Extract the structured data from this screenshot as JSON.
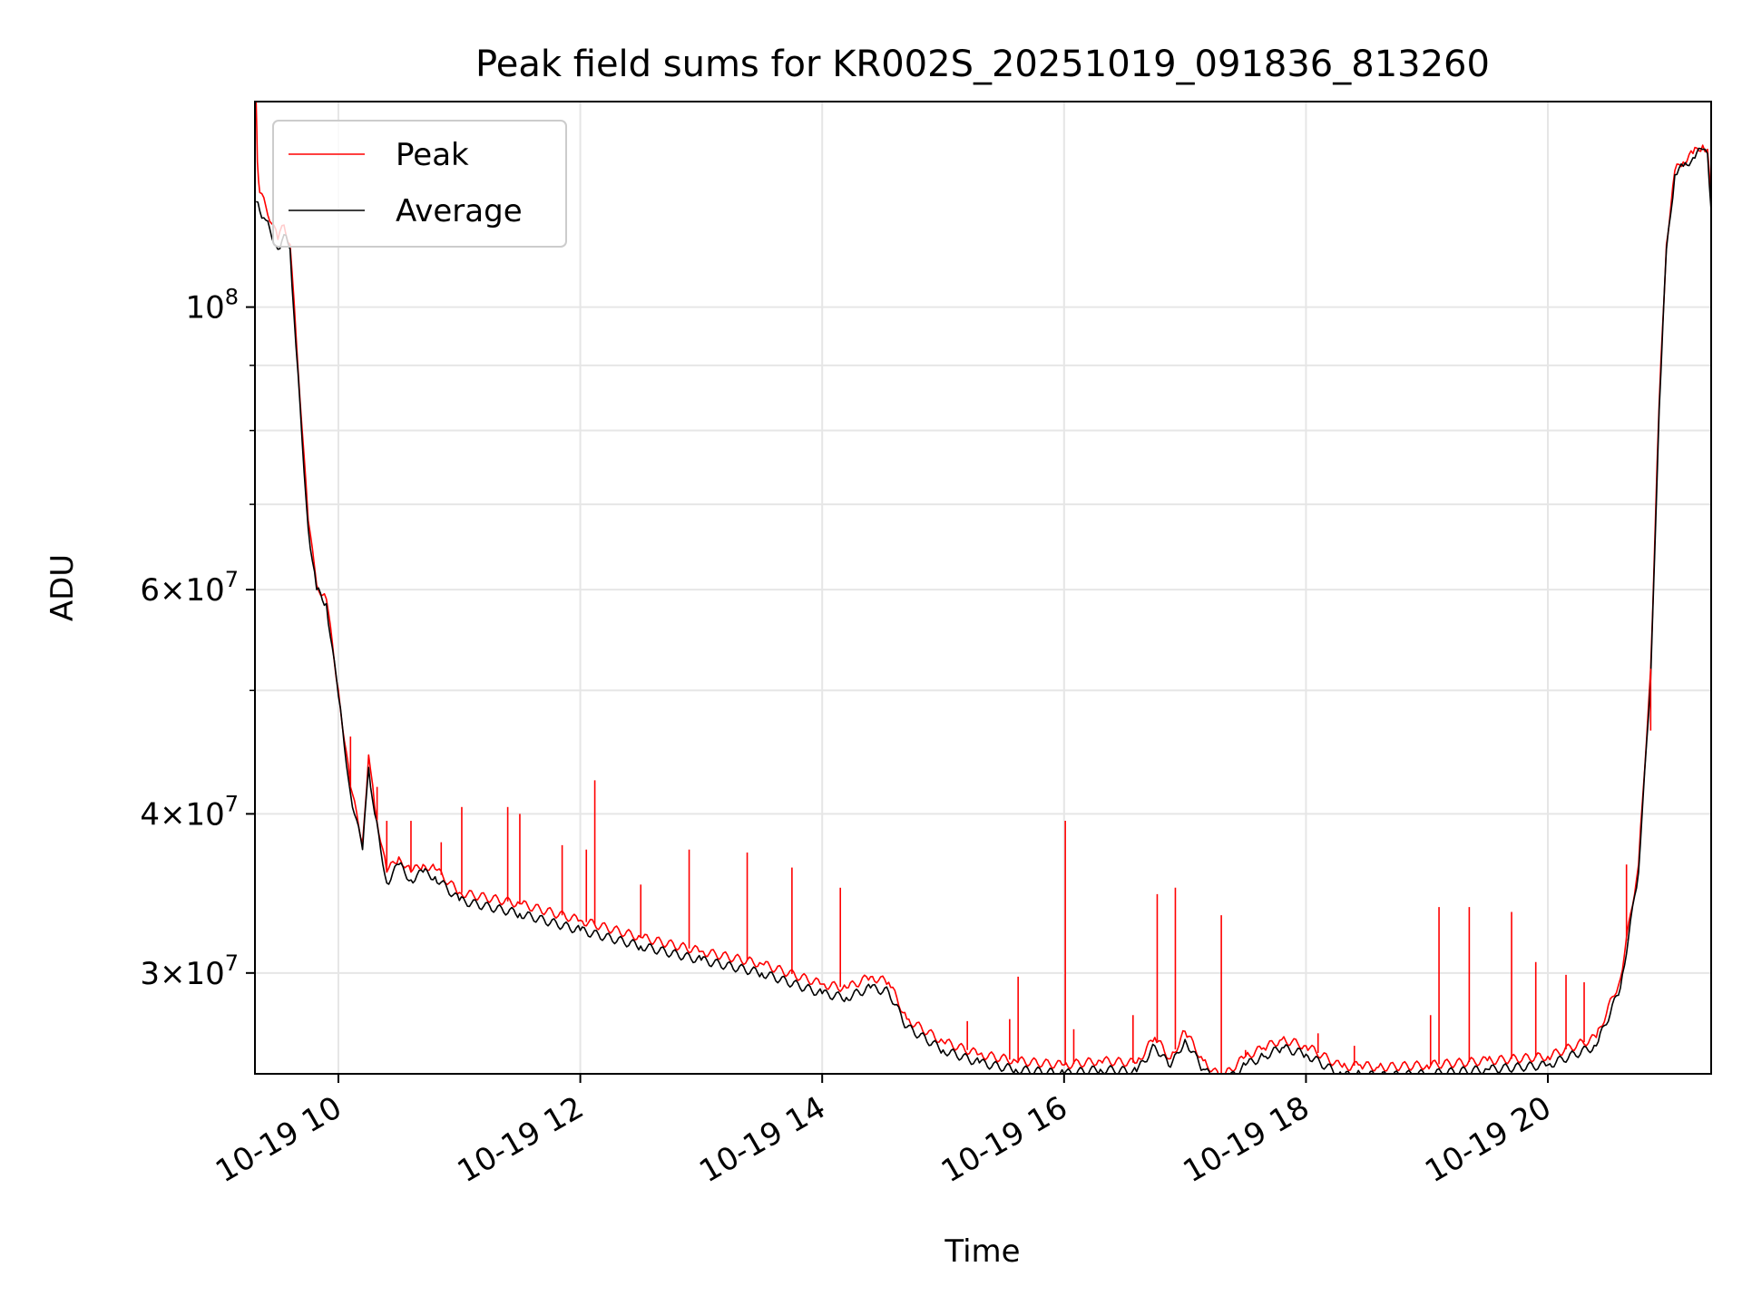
{
  "chart_data": {
    "type": "line",
    "title": "Peak field sums for KR002S_20251019_091836_813260",
    "xlabel": "Time",
    "ylabel": "ADU",
    "x_unit": "hours (2025-10-19, local clock)",
    "xlim": [
      9.31,
      21.35
    ],
    "ylim": [
      25000000,
      145000000
    ],
    "yscale": "log",
    "grid": true,
    "legend_position": "upper left",
    "x_ticks": [
      {
        "value": 10,
        "label": "10-19 10"
      },
      {
        "value": 12,
        "label": "10-19 12"
      },
      {
        "value": 14,
        "label": "10-19 14"
      },
      {
        "value": 16,
        "label": "10-19 16"
      },
      {
        "value": 18,
        "label": "10-19 18"
      },
      {
        "value": 20,
        "label": "10-19 20"
      }
    ],
    "y_major_ticks": [
      {
        "value": 100000000,
        "base": "10",
        "exp": "8"
      },
      {
        "value": 60000000,
        "mant": "6",
        "base": "10",
        "exp": "7"
      },
      {
        "value": 40000000,
        "mant": "4",
        "base": "10",
        "exp": "7"
      },
      {
        "value": 30000000,
        "mant": "3",
        "base": "10",
        "exp": "7"
      }
    ],
    "y_minor_ticks": [
      90000000,
      80000000,
      70000000,
      50000000
    ],
    "series": [
      {
        "name": "Peak",
        "color": "#ff0000",
        "x": [
          9.32,
          9.33,
          9.35,
          9.4,
          9.5,
          9.55,
          9.6,
          9.65,
          9.75,
          9.82,
          9.9,
          10.0,
          10.1,
          10.2,
          10.25,
          10.3,
          10.4,
          10.5,
          10.6,
          10.7,
          10.8,
          11.0,
          11.5,
          12.0,
          12.5,
          13.0,
          13.5,
          14.0,
          14.2,
          14.4,
          14.55,
          14.7,
          15.0,
          15.3,
          15.6,
          16.0,
          16.3,
          16.6,
          16.75,
          16.88,
          17.0,
          17.15,
          17.3,
          17.5,
          17.65,
          17.8,
          18.0,
          18.3,
          18.45,
          18.6,
          19.0,
          19.5,
          20.0,
          20.4,
          20.6,
          20.75,
          20.85,
          20.92,
          20.98,
          21.05,
          21.12,
          21.2,
          21.28,
          21.32,
          21.35
        ],
        "y": [
          145000000,
          130000000,
          123000000,
          120000000,
          113000000,
          116000000,
          112000000,
          95000000,
          68000000,
          60500000,
          59000000,
          50000000,
          42000000,
          38000000,
          44500000,
          40500000,
          36000000,
          37000000,
          36000000,
          36500000,
          36200000,
          34700000,
          34000000,
          33000000,
          32000000,
          31200000,
          30500000,
          29400000,
          29200000,
          29800000,
          29500000,
          27600000,
          26500000,
          25900000,
          25600000,
          25400000,
          25600000,
          25500000,
          26700000,
          25700000,
          27000000,
          25600000,
          24800000,
          25800000,
          26200000,
          26600000,
          26300000,
          25300000,
          25400000,
          25300000,
          25400000,
          25600000,
          25800000,
          26700000,
          29700000,
          36500000,
          52000000,
          84000000,
          112000000,
          128000000,
          130000000,
          132000000,
          134000000,
          133000000,
          120000000
        ]
      },
      {
        "name": "Average",
        "color": "#000000",
        "x": [
          9.32,
          9.35,
          9.4,
          9.5,
          9.55,
          9.6,
          9.65,
          9.75,
          9.82,
          9.9,
          10.0,
          10.1,
          10.2,
          10.25,
          10.3,
          10.4,
          10.5,
          10.6,
          10.7,
          10.8,
          11.0,
          11.5,
          12.0,
          12.5,
          13.0,
          13.5,
          14.0,
          14.2,
          14.4,
          14.55,
          14.7,
          15.0,
          15.3,
          15.6,
          16.0,
          16.3,
          16.6,
          16.75,
          16.88,
          17.0,
          17.15,
          17.3,
          17.5,
          17.65,
          17.8,
          18.0,
          18.3,
          18.45,
          18.6,
          19.0,
          19.5,
          20.0,
          20.4,
          20.6,
          20.75,
          20.85,
          20.92,
          20.98,
          21.05,
          21.12,
          21.2,
          21.28,
          21.32,
          21.35
        ],
        "y": [
          121000000,
          119000000,
          117000000,
          111000000,
          114000000,
          111000000,
          93000000,
          67000000,
          60000000,
          58500000,
          49500000,
          41500000,
          37500000,
          43500000,
          40000000,
          35300000,
          36500000,
          35500000,
          36000000,
          35700000,
          34200000,
          33400000,
          32400000,
          31500000,
          30700000,
          30000000,
          28900000,
          28700000,
          29200000,
          29000000,
          27200000,
          26100000,
          25500000,
          25200000,
          25000000,
          25200000,
          25100000,
          26300000,
          25300000,
          26600000,
          25200000,
          24500000,
          25400000,
          25800000,
          26200000,
          25900000,
          24900000,
          25000000,
          24900000,
          25000000,
          25200000,
          25400000,
          26300000,
          29200000,
          36000000,
          51000000,
          83000000,
          111000000,
          127000000,
          129000000,
          131000000,
          133000000,
          132000000,
          119000000
        ]
      }
    ],
    "spikes": [
      {
        "x": 10.1,
        "y": 46000000
      },
      {
        "x": 10.32,
        "y": 42000000
      },
      {
        "x": 10.4,
        "y": 39500000
      },
      {
        "x": 10.6,
        "y": 39500000
      },
      {
        "x": 10.85,
        "y": 38000000
      },
      {
        "x": 11.02,
        "y": 40500000
      },
      {
        "x": 11.4,
        "y": 40500000
      },
      {
        "x": 11.5,
        "y": 40000000
      },
      {
        "x": 11.85,
        "y": 37800000
      },
      {
        "x": 12.05,
        "y": 37500000
      },
      {
        "x": 12.12,
        "y": 42500000
      },
      {
        "x": 12.5,
        "y": 35200000
      },
      {
        "x": 12.9,
        "y": 37500000
      },
      {
        "x": 13.38,
        "y": 37300000
      },
      {
        "x": 13.75,
        "y": 36300000
      },
      {
        "x": 14.15,
        "y": 35000000
      },
      {
        "x": 15.2,
        "y": 27500000
      },
      {
        "x": 15.55,
        "y": 27600000
      },
      {
        "x": 15.62,
        "y": 29800000
      },
      {
        "x": 16.01,
        "y": 39500000
      },
      {
        "x": 16.08,
        "y": 27100000
      },
      {
        "x": 16.57,
        "y": 27800000
      },
      {
        "x": 16.77,
        "y": 34600000
      },
      {
        "x": 16.92,
        "y": 35000000
      },
      {
        "x": 17.3,
        "y": 33300000
      },
      {
        "x": 17.5,
        "y": 26100000
      },
      {
        "x": 18.1,
        "y": 26900000
      },
      {
        "x": 18.4,
        "y": 26300000
      },
      {
        "x": 19.03,
        "y": 27800000
      },
      {
        "x": 19.1,
        "y": 33800000
      },
      {
        "x": 19.35,
        "y": 33800000
      },
      {
        "x": 19.7,
        "y": 33500000
      },
      {
        "x": 19.9,
        "y": 30600000
      },
      {
        "x": 20.15,
        "y": 29900000
      },
      {
        "x": 20.3,
        "y": 29500000
      },
      {
        "x": 20.65,
        "y": 36500000
      },
      {
        "x": 20.85,
        "y": 46500000
      }
    ]
  }
}
